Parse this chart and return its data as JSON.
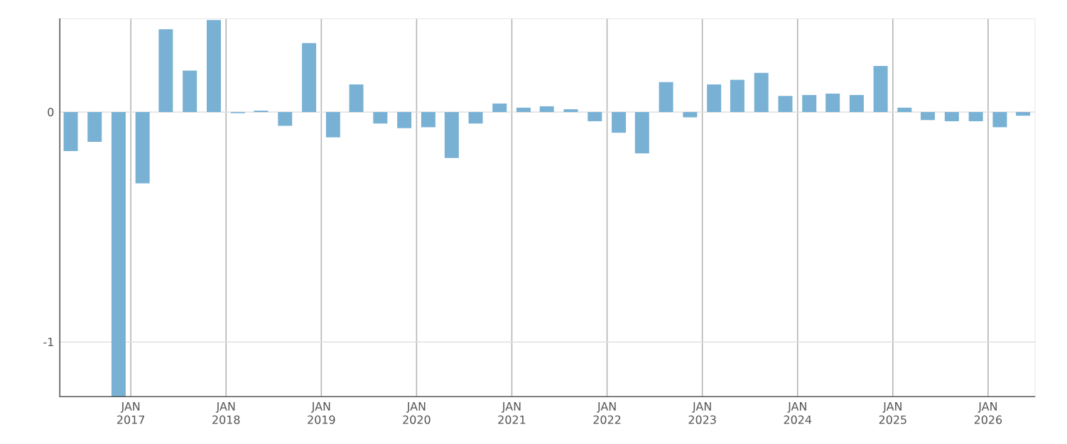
{
  "chart_data": {
    "type": "bar",
    "color": "#78b1d4",
    "x": [
      "2016-05-15",
      "2016-08-15",
      "2016-11-15",
      "2017-02-15",
      "2017-05-15",
      "2017-08-15",
      "2017-11-15",
      "2018-02-15",
      "2018-05-15",
      "2018-08-15",
      "2018-11-15",
      "2019-02-15",
      "2019-05-15",
      "2019-08-15",
      "2019-11-15",
      "2020-02-15",
      "2020-05-15",
      "2020-08-15",
      "2020-11-15",
      "2021-02-15",
      "2021-05-15",
      "2021-08-15",
      "2021-11-15",
      "2022-02-15",
      "2022-05-15",
      "2022-08-15",
      "2022-11-15",
      "2023-02-15",
      "2023-05-15",
      "2023-08-15",
      "2023-11-15",
      "2024-02-15",
      "2024-05-15",
      "2024-08-15",
      "2024-11-15",
      "2025-02-15",
      "2025-05-15",
      "2025-08-15",
      "2025-11-15",
      "2026-02-15",
      "2026-05-15"
    ],
    "values": [
      -0.17,
      -0.13,
      -1.24,
      -0.31,
      0.36,
      0.18,
      0.4,
      -0.005,
      0.006,
      -0.06,
      0.3,
      -0.11,
      0.12,
      -0.05,
      -0.07,
      -0.066,
      -0.2,
      -0.05,
      0.037,
      0.019,
      0.025,
      0.012,
      -0.04,
      -0.09,
      -0.18,
      0.13,
      -0.023,
      0.12,
      0.14,
      0.17,
      0.07,
      0.074,
      0.08,
      0.074,
      0.2,
      0.019,
      -0.035,
      -0.04,
      -0.04,
      -0.066,
      -0.016
    ],
    "xlim": [
      "2016-04-01",
      "2026-07-01"
    ],
    "ylim": [
      -1.24,
      0.407
    ],
    "xticks": [
      {
        "value": "2017-01-01",
        "label": "JAN 2017"
      },
      {
        "value": "2018-01-01",
        "label": "JAN 2018"
      },
      {
        "value": "2019-01-01",
        "label": "JAN 2019"
      },
      {
        "value": "2020-01-01",
        "label": "JAN 2020"
      },
      {
        "value": "2021-01-01",
        "label": "JAN 2021"
      },
      {
        "value": "2022-01-01",
        "label": "JAN 2022"
      },
      {
        "value": "2023-01-01",
        "label": "JAN 2023"
      },
      {
        "value": "2024-01-01",
        "label": "JAN 2024"
      },
      {
        "value": "2025-01-01",
        "label": "JAN 2025"
      },
      {
        "value": "2026-01-01",
        "label": "JAN 2026"
      }
    ],
    "yticks": [
      {
        "value": -1,
        "label": "-1"
      },
      {
        "value": 0,
        "label": "0"
      }
    ],
    "grid": true
  }
}
